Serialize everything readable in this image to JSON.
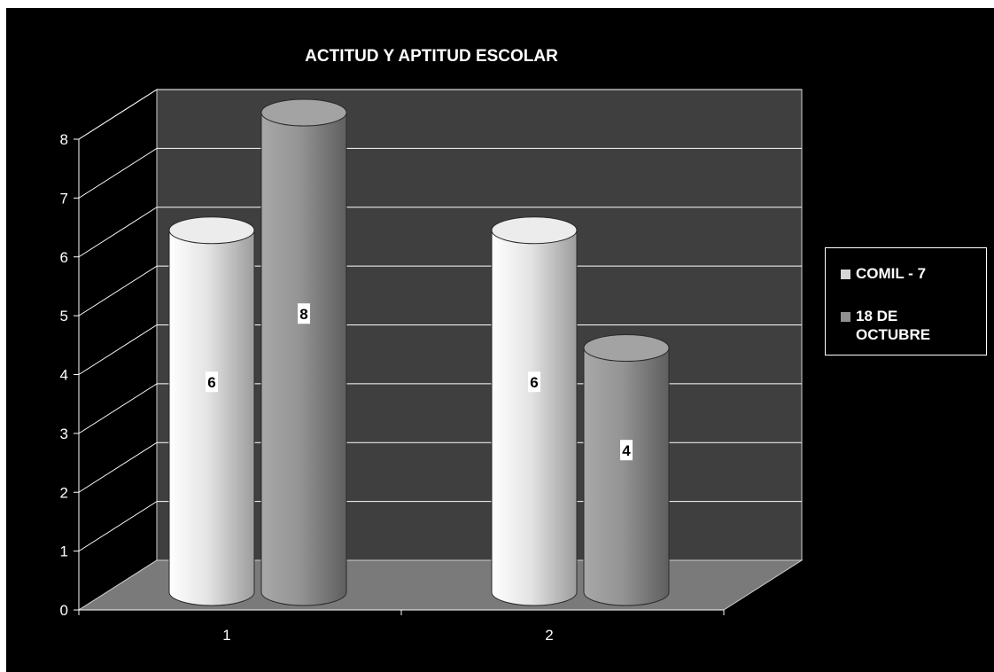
{
  "chart_data": {
    "type": "bar",
    "title": "ACTITUD Y APTITUD ESCOLAR",
    "categories": [
      "1",
      "2"
    ],
    "series": [
      {
        "name": "COMIL - 7",
        "values": [
          6,
          6
        ],
        "color": "#d6d6d6"
      },
      {
        "name": "18 DE OCTUBRE",
        "values": [
          8,
          4
        ],
        "color": "#8f8f8f"
      }
    ],
    "ylim": [
      0,
      8
    ],
    "yticks": [
      0,
      1,
      2,
      3,
      4,
      5,
      6,
      7,
      8
    ],
    "bar_shape": "cylinder-3d",
    "data_labels": true,
    "grid": true,
    "legend_position": "right",
    "colors": {
      "background": "#000000",
      "back_wall": "#3f3f3f",
      "floor": "#7a7a7a",
      "gridlines": "#ffffff"
    }
  }
}
